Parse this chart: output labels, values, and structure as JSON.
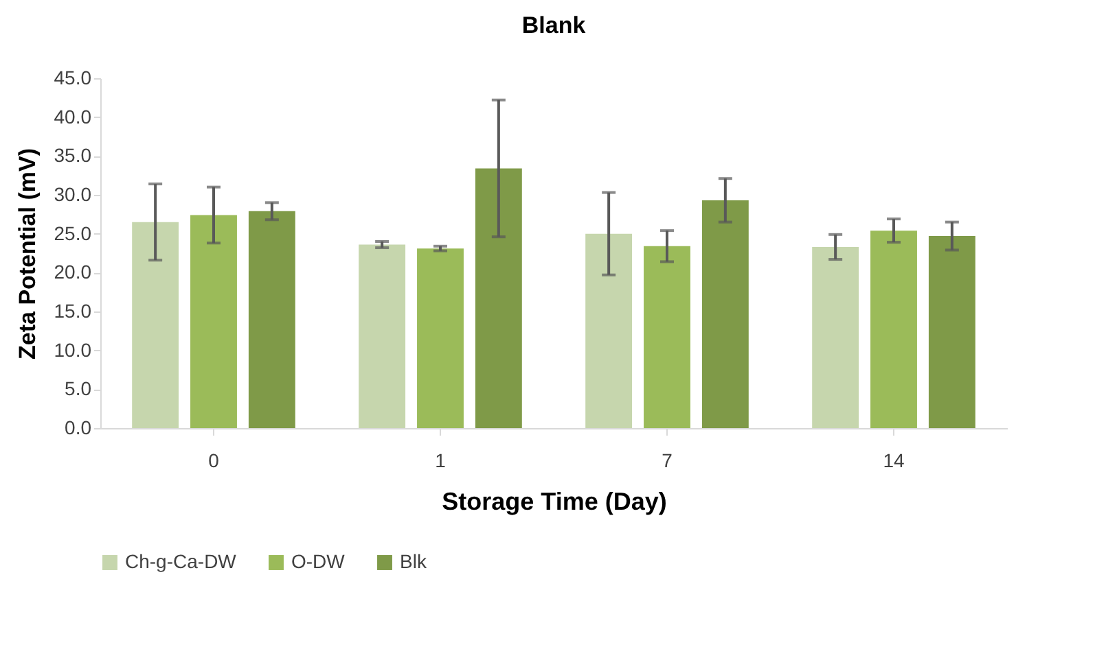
{
  "chart_data": {
    "type": "bar",
    "title": "Blank",
    "xlabel": "Storage Time (Day)",
    "ylabel": "Zeta Potential (mV)",
    "categories": [
      "0",
      "1",
      "7",
      "14"
    ],
    "series": [
      {
        "name": "Ch-g-Ca-DW",
        "color": "#c6d6ad",
        "values": [
          26.5,
          23.6,
          25.0,
          23.3
        ],
        "errors": [
          4.9,
          0.4,
          5.3,
          1.6
        ]
      },
      {
        "name": "O-DW",
        "color": "#9bbb59",
        "values": [
          27.4,
          23.1,
          23.4,
          25.4
        ],
        "errors": [
          3.6,
          0.3,
          2.0,
          1.5
        ]
      },
      {
        "name": "Blk",
        "color": "#7f9a48",
        "values": [
          27.9,
          33.4,
          29.3,
          24.7
        ],
        "errors": [
          1.1,
          8.8,
          2.8,
          1.8
        ]
      }
    ],
    "ylim": [
      0,
      45
    ],
    "yticks": [
      {
        "value": 0,
        "label": "0.0"
      },
      {
        "value": 5,
        "label": "5.0"
      },
      {
        "value": 10,
        "label": "10.0"
      },
      {
        "value": 15,
        "label": "15.0"
      },
      {
        "value": 20,
        "label": "20.0"
      },
      {
        "value": 25,
        "label": "25.0"
      },
      {
        "value": 30,
        "label": "30.0"
      },
      {
        "value": 35,
        "label": "35.0"
      },
      {
        "value": 40,
        "label": "40.0"
      },
      {
        "value": 45,
        "label": "45.0"
      }
    ],
    "grid": false,
    "legend": "bottom"
  }
}
